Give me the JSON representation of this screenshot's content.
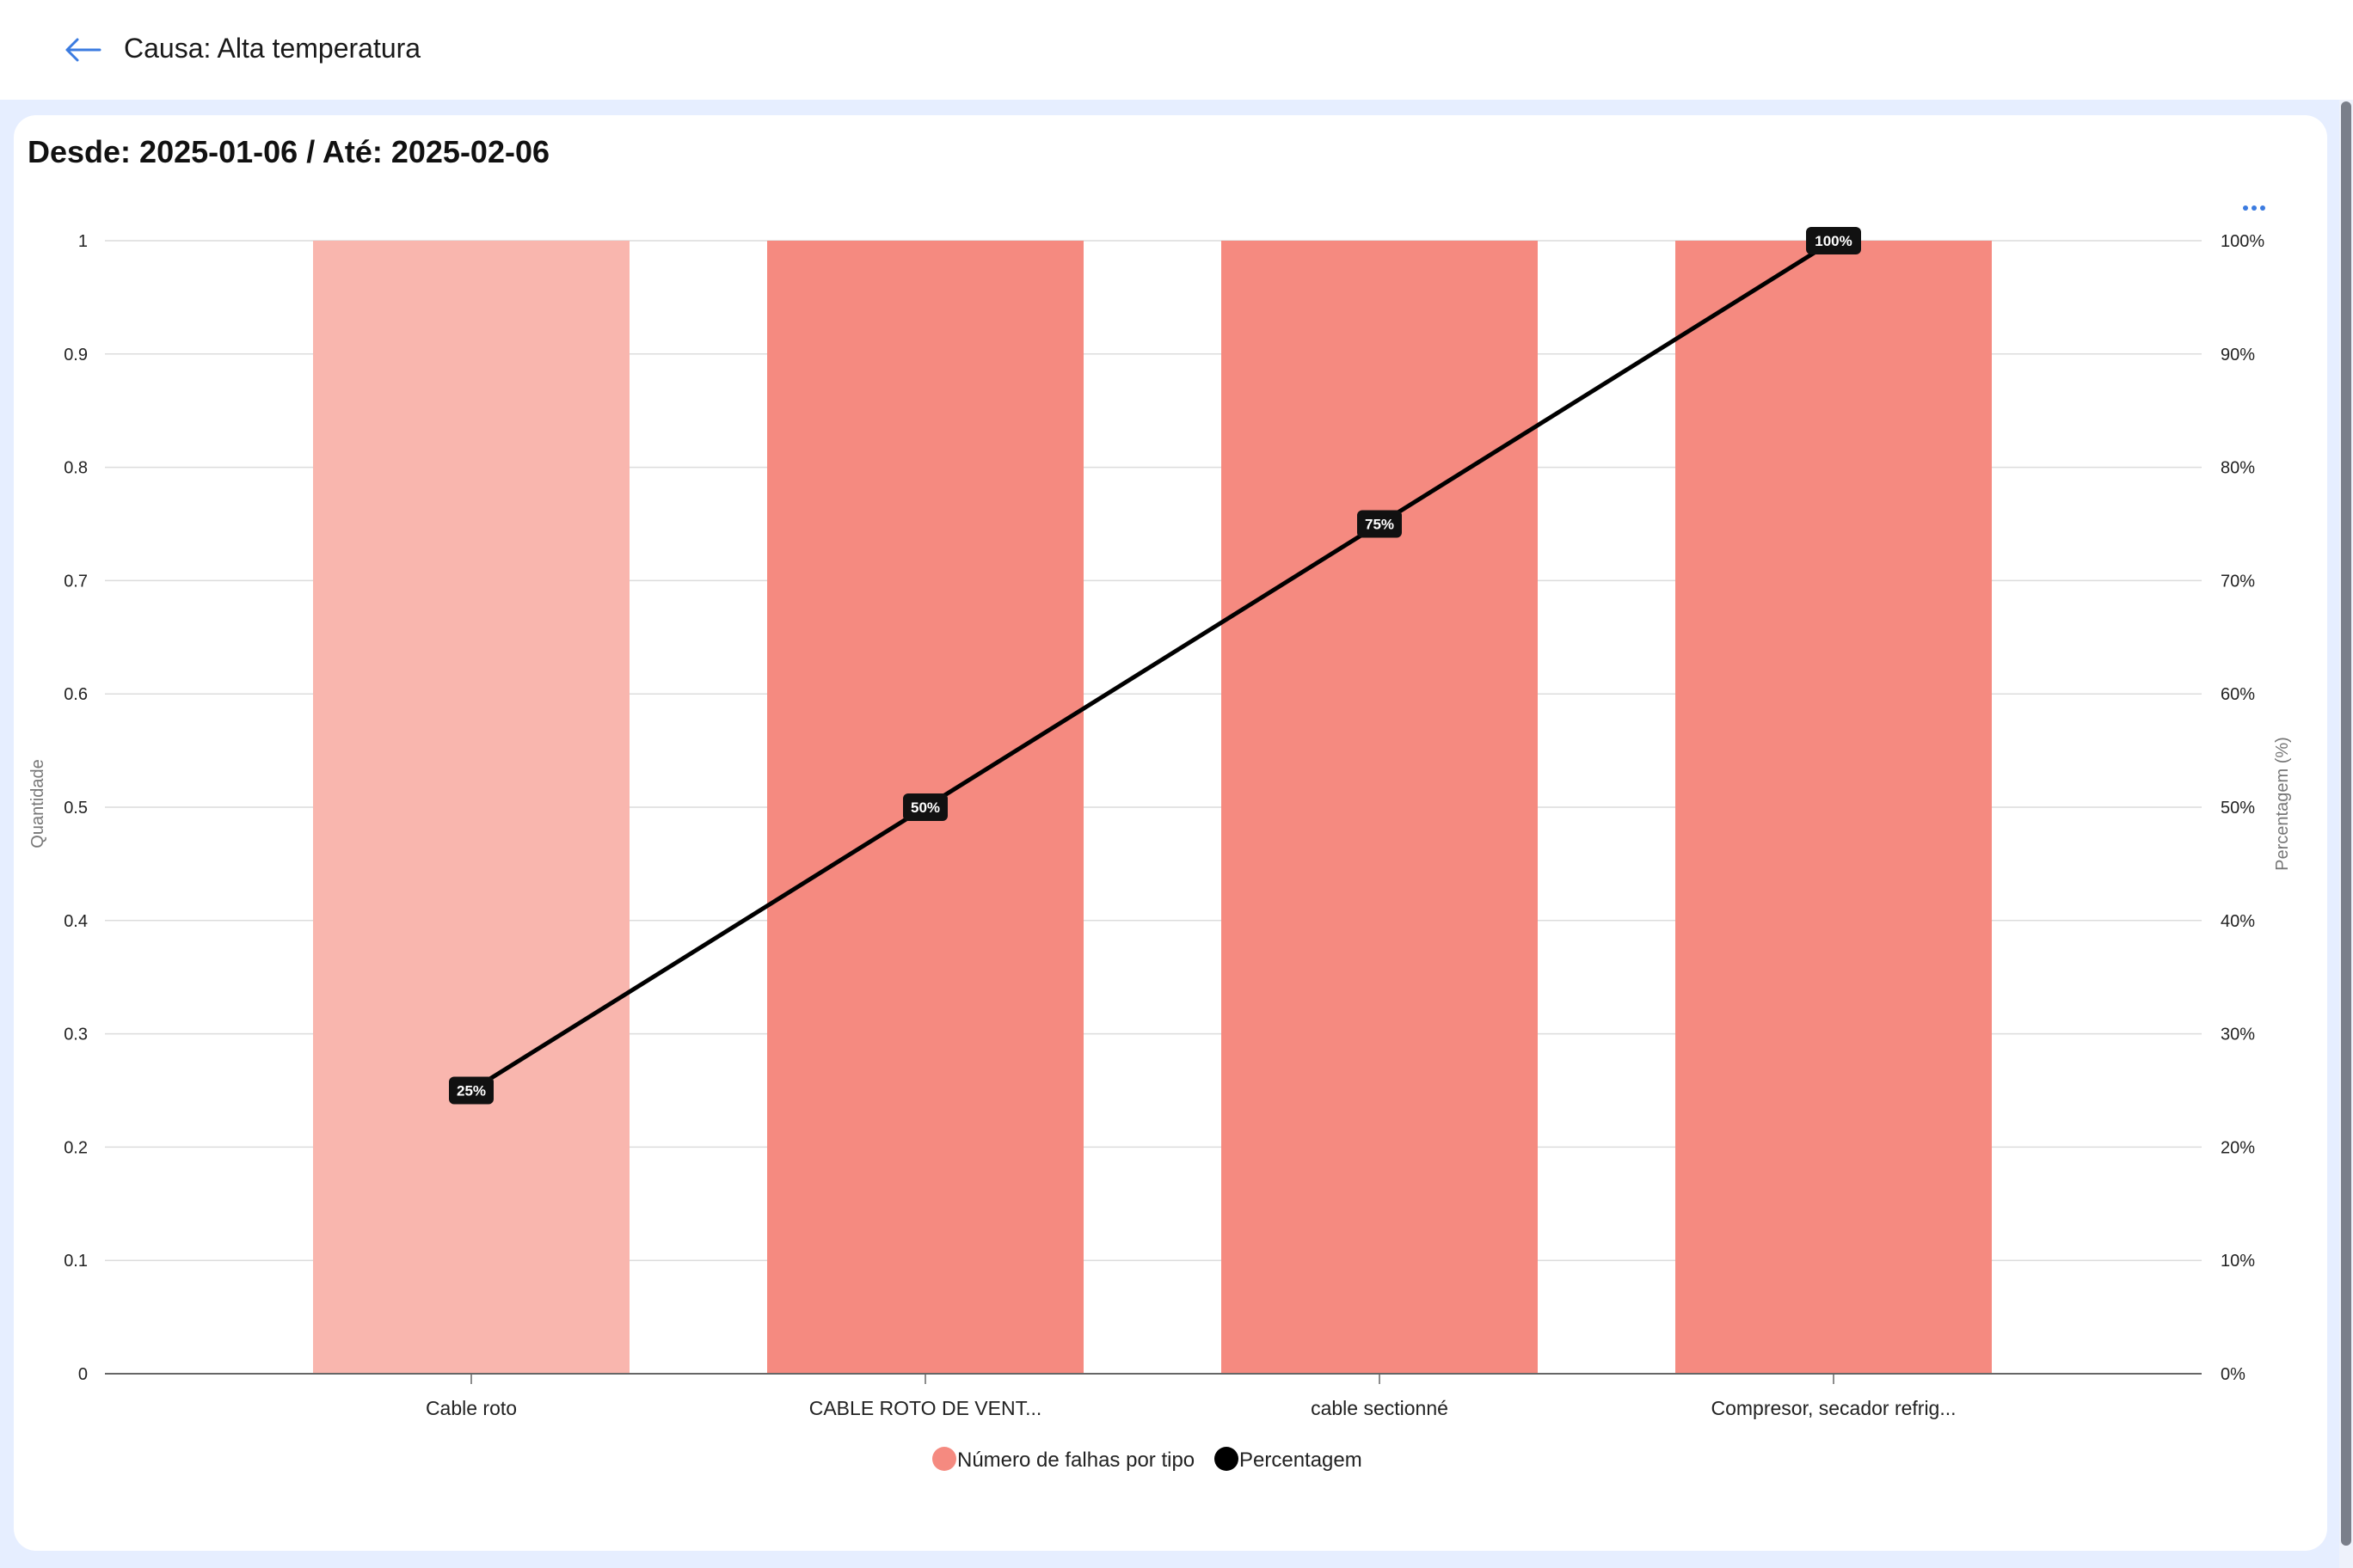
{
  "header": {
    "title": "Causa: Alta temperatura"
  },
  "card": {
    "date_range": "Desde: 2025-01-06 / Até: 2025-02-06"
  },
  "icons": {
    "back": "arrow-left-icon",
    "more": "more-horizontal-icon"
  },
  "colors": {
    "accent": "#3b7be0",
    "bar": "#f58a80",
    "bar_highlight": "#f9b6ae",
    "line": "#000000",
    "background": "#e6eeff"
  },
  "chart_data": {
    "type": "bar",
    "categories": [
      "Cable roto",
      "CABLE ROTO DE VENT...",
      "cable sectionné",
      "Compresor, secador refrig..."
    ],
    "series": [
      {
        "name": "Número de falhas por tipo",
        "type": "bar",
        "axis": "left",
        "values": [
          1,
          1,
          1,
          1
        ]
      },
      {
        "name": "Percentagem",
        "type": "line",
        "axis": "right",
        "values": [
          25,
          50,
          75,
          100
        ],
        "labels": [
          "25%",
          "50%",
          "75%",
          "100%"
        ]
      }
    ],
    "ylabel": "Quantidade",
    "y2label": "Percentagem (%)",
    "ylim": [
      0,
      1
    ],
    "y2lim": [
      0,
      100
    ],
    "yticks": [
      "0",
      "0.1",
      "0.2",
      "0.3",
      "0.4",
      "0.5",
      "0.6",
      "0.7",
      "0.8",
      "0.9",
      "1"
    ],
    "y2ticks": [
      "0%",
      "10%",
      "20%",
      "30%",
      "40%",
      "50%",
      "60%",
      "70%",
      "80%",
      "90%",
      "100%"
    ],
    "grid": true,
    "legend_position": "bottom-center"
  }
}
